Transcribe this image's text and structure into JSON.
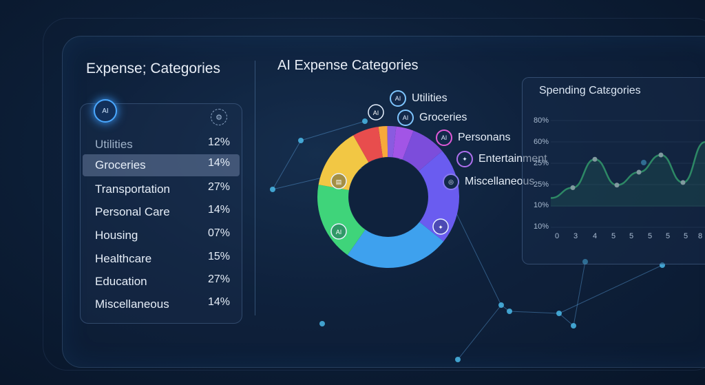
{
  "left_panel": {
    "title": "Expense; Categories",
    "ai_badge": "AI",
    "items": [
      {
        "name": "Utilities",
        "pct": "12%"
      },
      {
        "name": "Groceries",
        "pct": "14%"
      },
      {
        "name": "Transportation",
        "pct": "27%"
      },
      {
        "name": "Personal Care",
        "pct": "14%"
      },
      {
        "name": "Housing",
        "pct": "07%"
      },
      {
        "name": "Healthcare",
        "pct": "15%"
      },
      {
        "name": "Education",
        "pct": "27%"
      },
      {
        "name": "Miscellaneous",
        "pct": "14%"
      }
    ]
  },
  "chart_data": [
    {
      "type": "pie",
      "title": "AI Expense Categories",
      "labels": [
        "Utilities",
        "Groceries",
        "Personans",
        "Entertainment",
        "Miscellaneous"
      ],
      "slices": [
        {
          "value": 2,
          "color": "#f7a93b"
        },
        {
          "value": 2,
          "color": "#8a5be0"
        },
        {
          "value": 4,
          "color": "#a255e6"
        },
        {
          "value": 8,
          "color": "#7c4ddb"
        },
        {
          "value": 22,
          "color": "#6a5cf0"
        },
        {
          "value": 24,
          "color": "#3ea1ee"
        },
        {
          "value": 18,
          "color": "#3fd47a"
        },
        {
          "value": 14,
          "color": "#f2c744"
        },
        {
          "value": 6,
          "color": "#e84d4d"
        }
      ],
      "badge": "AI"
    },
    {
      "type": "line",
      "title": "Spending Catεgories",
      "y_ticks": [
        "80%",
        "60%",
        "25%",
        "25%",
        "10%",
        "10%"
      ],
      "x_ticks": [
        "0",
        "3",
        "4",
        "5",
        "5",
        "5",
        "5",
        "5",
        "8"
      ],
      "series": [
        {
          "color": "#3fd47a",
          "values": [
            10,
            22,
            55,
            25,
            40,
            60,
            28,
            75
          ]
        }
      ]
    }
  ],
  "colors": {
    "accent": "#4aa8ff",
    "background": "#0d1f38"
  }
}
